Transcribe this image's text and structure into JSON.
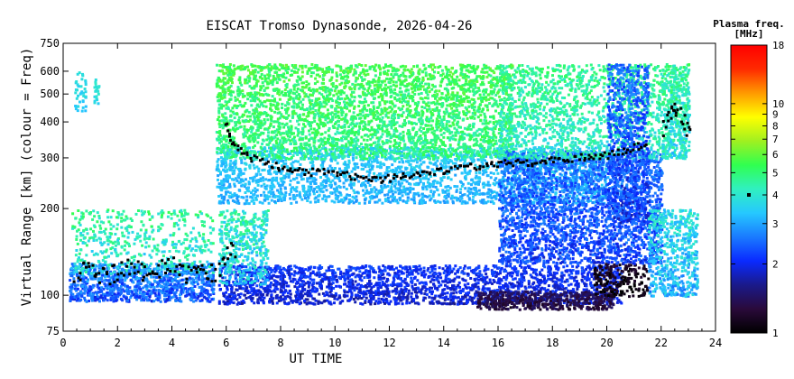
{
  "chart_data": {
    "type": "heatmap",
    "title": "EISCAT Tromso Dynasonde, 2026-04-26",
    "xlabel": "UT TIME",
    "ylabel": "Virtual Range [km] (colour = Freq)",
    "x_ticks": [
      0,
      2,
      4,
      6,
      8,
      10,
      12,
      14,
      16,
      18,
      20,
      22,
      24
    ],
    "xlim": [
      0,
      24
    ],
    "y_scale": "log",
    "ylim": [
      75,
      750
    ],
    "y_ticks": [
      75,
      100,
      200,
      300,
      400,
      500,
      600,
      750
    ],
    "colorbar": {
      "title_line1": "Plasma freq.",
      "title_line2": "[MHz]",
      "scale": "log",
      "range": [
        1,
        18
      ],
      "ticks": [
        1,
        2,
        3,
        4,
        5,
        6,
        7,
        8,
        9,
        10,
        18
      ],
      "marker_value": 4,
      "colors": [
        "#000000",
        "#2a0a3a",
        "#1a1a8a",
        "#0a2aff",
        "#1a7aff",
        "#26c8ff",
        "#30f0c0",
        "#30ff50",
        "#a0f020",
        "#ffff00",
        "#ff9a00",
        "#ff2a00",
        "#ff0000"
      ]
    },
    "f_region_trace_km": {
      "x": [
        5.9,
        6.2,
        6.5,
        7.0,
        7.5,
        8.0,
        8.5,
        9.0,
        9.5,
        10.0,
        10.5,
        11.0,
        11.5,
        12.0,
        12.5,
        13.0,
        13.5,
        14.0,
        14.5,
        15.0,
        15.5,
        16.0,
        16.5,
        17.0,
        17.5,
        18.0,
        18.5,
        19.0,
        19.5,
        20.0,
        20.5,
        21.0,
        21.5
      ],
      "y": [
        400,
        340,
        320,
        300,
        290,
        280,
        275,
        270,
        270,
        265,
        262,
        258,
        255,
        258,
        262,
        265,
        270,
        272,
        278,
        282,
        285,
        288,
        292,
        290,
        293,
        296,
        299,
        305,
        308,
        310,
        320,
        330,
        340
      ]
    },
    "f_region_trace_late_km": {
      "x": [
        22.0,
        22.3,
        22.5,
        22.8,
        23.0
      ],
      "y": [
        380,
        420,
        450,
        400,
        350
      ]
    },
    "e_region_trace_km": {
      "x": [
        0.4,
        0.8,
        1.2,
        1.6,
        2.0,
        2.4,
        2.8,
        3.2,
        3.6,
        4.0,
        4.4,
        4.8,
        5.2,
        5.6,
        6.0,
        6.3
      ],
      "y": [
        115,
        125,
        120,
        118,
        122,
        128,
        120,
        115,
        125,
        130,
        120,
        118,
        125,
        120,
        140,
        150
      ]
    }
  }
}
